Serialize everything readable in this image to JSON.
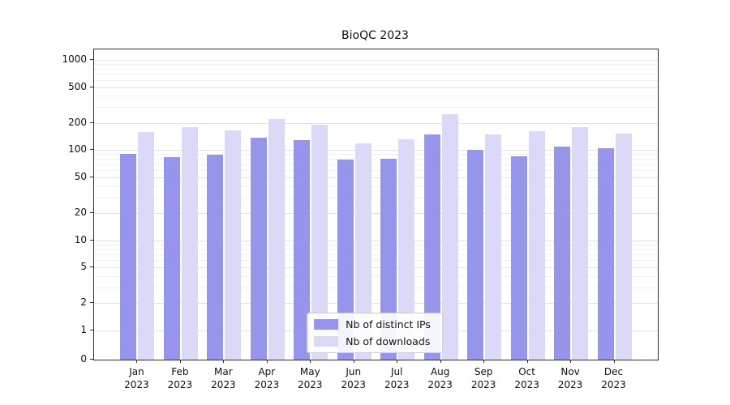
{
  "title": "BioQC 2023",
  "chart_data": {
    "type": "bar",
    "title": "BioQC 2023",
    "yscale": "symlog",
    "grid": true,
    "legend_position": "lower center",
    "categories": [
      "Jan",
      "Feb",
      "Mar",
      "Apr",
      "May",
      "Jun",
      "Jul",
      "Aug",
      "Sep",
      "Oct",
      "Nov",
      "Dec"
    ],
    "year": "2023",
    "yticks": [
      0,
      1,
      2,
      5,
      10,
      20,
      50,
      100,
      200,
      500,
      1000
    ],
    "ylim": [
      0,
      1300
    ],
    "series": [
      {
        "name": "Nb of distinct IPs",
        "color": "#9595ec",
        "values": [
          90,
          84,
          89,
          138,
          130,
          78,
          81,
          150,
          100,
          85,
          110,
          106
        ]
      },
      {
        "name": "Nb of downloads",
        "color": "#dadaf8",
        "values": [
          160,
          178,
          165,
          222,
          192,
          118,
          132,
          248,
          148,
          162,
          180,
          152
        ]
      }
    ]
  },
  "colors": {
    "grid_major": "#e2e2e2",
    "grid_minor": "#f2f2f2",
    "axis": "#2b2b2b"
  }
}
